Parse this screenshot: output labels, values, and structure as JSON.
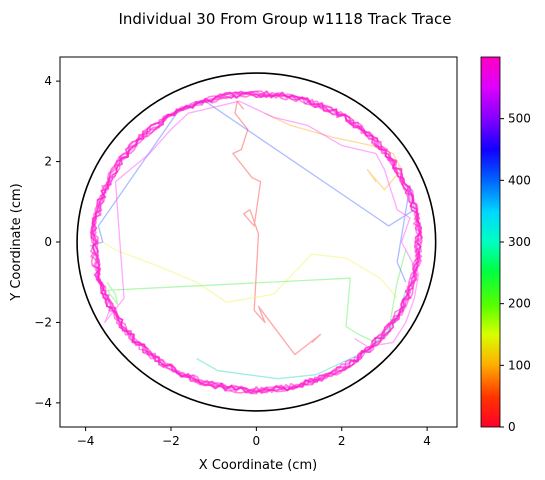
{
  "chart_data": {
    "type": "line",
    "title": "Individual 30 From Group w1118 Track Trace",
    "xlabel": "X Coordinate (cm)",
    "ylabel": "Y Coordinate (cm)",
    "xlim": [
      -4.6,
      4.7
    ],
    "ylim": [
      -4.6,
      4.6
    ],
    "x_ticks": [
      -4,
      -2,
      0,
      2,
      4
    ],
    "y_ticks": [
      -4,
      -2,
      0,
      2,
      4
    ],
    "x_tick_labels": [
      "−4",
      "−2",
      "0",
      "2",
      "4"
    ],
    "y_tick_labels": [
      "−4",
      "−2",
      "0",
      "2",
      "4"
    ],
    "arena": {
      "center": [
        0,
        0
      ],
      "radius": 4.2,
      "color": "#000000"
    },
    "colorbar": {
      "colormap": "gist_rainbow",
      "min": 0,
      "max": 600,
      "ticks": [
        0,
        100,
        200,
        300,
        400,
        500
      ],
      "tick_labels": [
        "0",
        "100",
        "200",
        "300",
        "400",
        "500"
      ]
    },
    "series": [
      {
        "t_start": 0,
        "t_end": 80,
        "color": "#ff3b3b",
        "x": [
          -0.3,
          -0.45,
          -0.5,
          -0.2,
          -0.35,
          -0.55,
          -0.1,
          0.1,
          -0.05,
          -0.3,
          -0.15,
          0.05,
          -0.05,
          0.2,
          0.05,
          0.9,
          1.5,
          1.3
        ],
        "y": [
          3.3,
          3.5,
          3.2,
          2.8,
          2.3,
          2.2,
          1.6,
          1.5,
          0.4,
          0.7,
          0.8,
          0.2,
          -1.7,
          -2.0,
          -1.6,
          -2.8,
          -2.3,
          -2.5
        ]
      },
      {
        "t_start": 80,
        "t_end": 150,
        "color": "#ffb020",
        "x": [
          0.2,
          0.8,
          1.8,
          2.7,
          3.2,
          3.4,
          3.0,
          2.6,
          2.8
        ],
        "y": [
          3.2,
          2.9,
          2.6,
          2.4,
          2.2,
          1.8,
          1.3,
          1.8,
          1.5
        ]
      },
      {
        "t_start": 150,
        "t_end": 230,
        "color": "#f2f25a",
        "x": [
          -3.6,
          -3.3,
          -2.3,
          -1.4,
          -0.7,
          0.4,
          1.3,
          2.1,
          2.9,
          3.3
        ],
        "y": [
          0.0,
          -0.2,
          -0.6,
          -1.0,
          -1.5,
          -1.3,
          -0.3,
          -0.4,
          -0.9,
          -1.4
        ]
      },
      {
        "t_start": 230,
        "t_end": 320,
        "color": "#5cf05c",
        "x": [
          -3.5,
          -3.3,
          -3.25,
          -3.5,
          2.2,
          2.1,
          2.4,
          2.8,
          3.1,
          3.3,
          3.5
        ],
        "y": [
          -1.0,
          -1.3,
          -1.55,
          -1.2,
          -0.9,
          -2.1,
          -2.3,
          -2.5,
          -2.2,
          -1.0,
          -0.2
        ]
      },
      {
        "t_start": 320,
        "t_end": 420,
        "color": "#28d8c8",
        "x": [
          -1.4,
          -0.9,
          0.5,
          1.4,
          2.0,
          2.6,
          3.1,
          3.3,
          3.5
        ],
        "y": [
          -2.9,
          -3.2,
          -3.4,
          -3.3,
          -3.0,
          -2.7,
          -2.2,
          -1.9,
          -1.2
        ]
      },
      {
        "t_start": 420,
        "t_end": 500,
        "color": "#4a6cff",
        "x": [
          -3.9,
          -3.6,
          -3.7,
          -1.8,
          -1.2,
          3.1,
          3.7,
          3.6,
          3.3,
          3.5
        ],
        "y": [
          -0.1,
          0.0,
          0.4,
          3.3,
          3.5,
          0.4,
          0.8,
          1.4,
          -0.5,
          -1.0
        ]
      },
      {
        "t_start": 500,
        "t_end": 600,
        "color": "#ff40ff",
        "x": [
          -3.8,
          -3.4,
          -3.55,
          -3.1,
          -3.3,
          -2.5,
          -2.0,
          -1.6,
          -0.4,
          0.4,
          1.2,
          2.0,
          2.8,
          3.0,
          3.3,
          3.6,
          3.4,
          3.8,
          3.7,
          3.5,
          3.2,
          2.6,
          2.3
        ],
        "y": [
          -0.6,
          -1.6,
          -2.0,
          -1.4,
          1.5,
          2.2,
          2.8,
          3.2,
          3.5,
          3.1,
          2.9,
          2.4,
          2.2,
          1.8,
          0.8,
          0.6,
          0.0,
          -0.8,
          -1.4,
          -2.0,
          -2.5,
          -2.6,
          -2.4
        ]
      }
    ],
    "wall_loop": {
      "radius": 3.8,
      "y_scale": 0.97,
      "laps": 7,
      "color": "#ff1fcf"
    }
  }
}
